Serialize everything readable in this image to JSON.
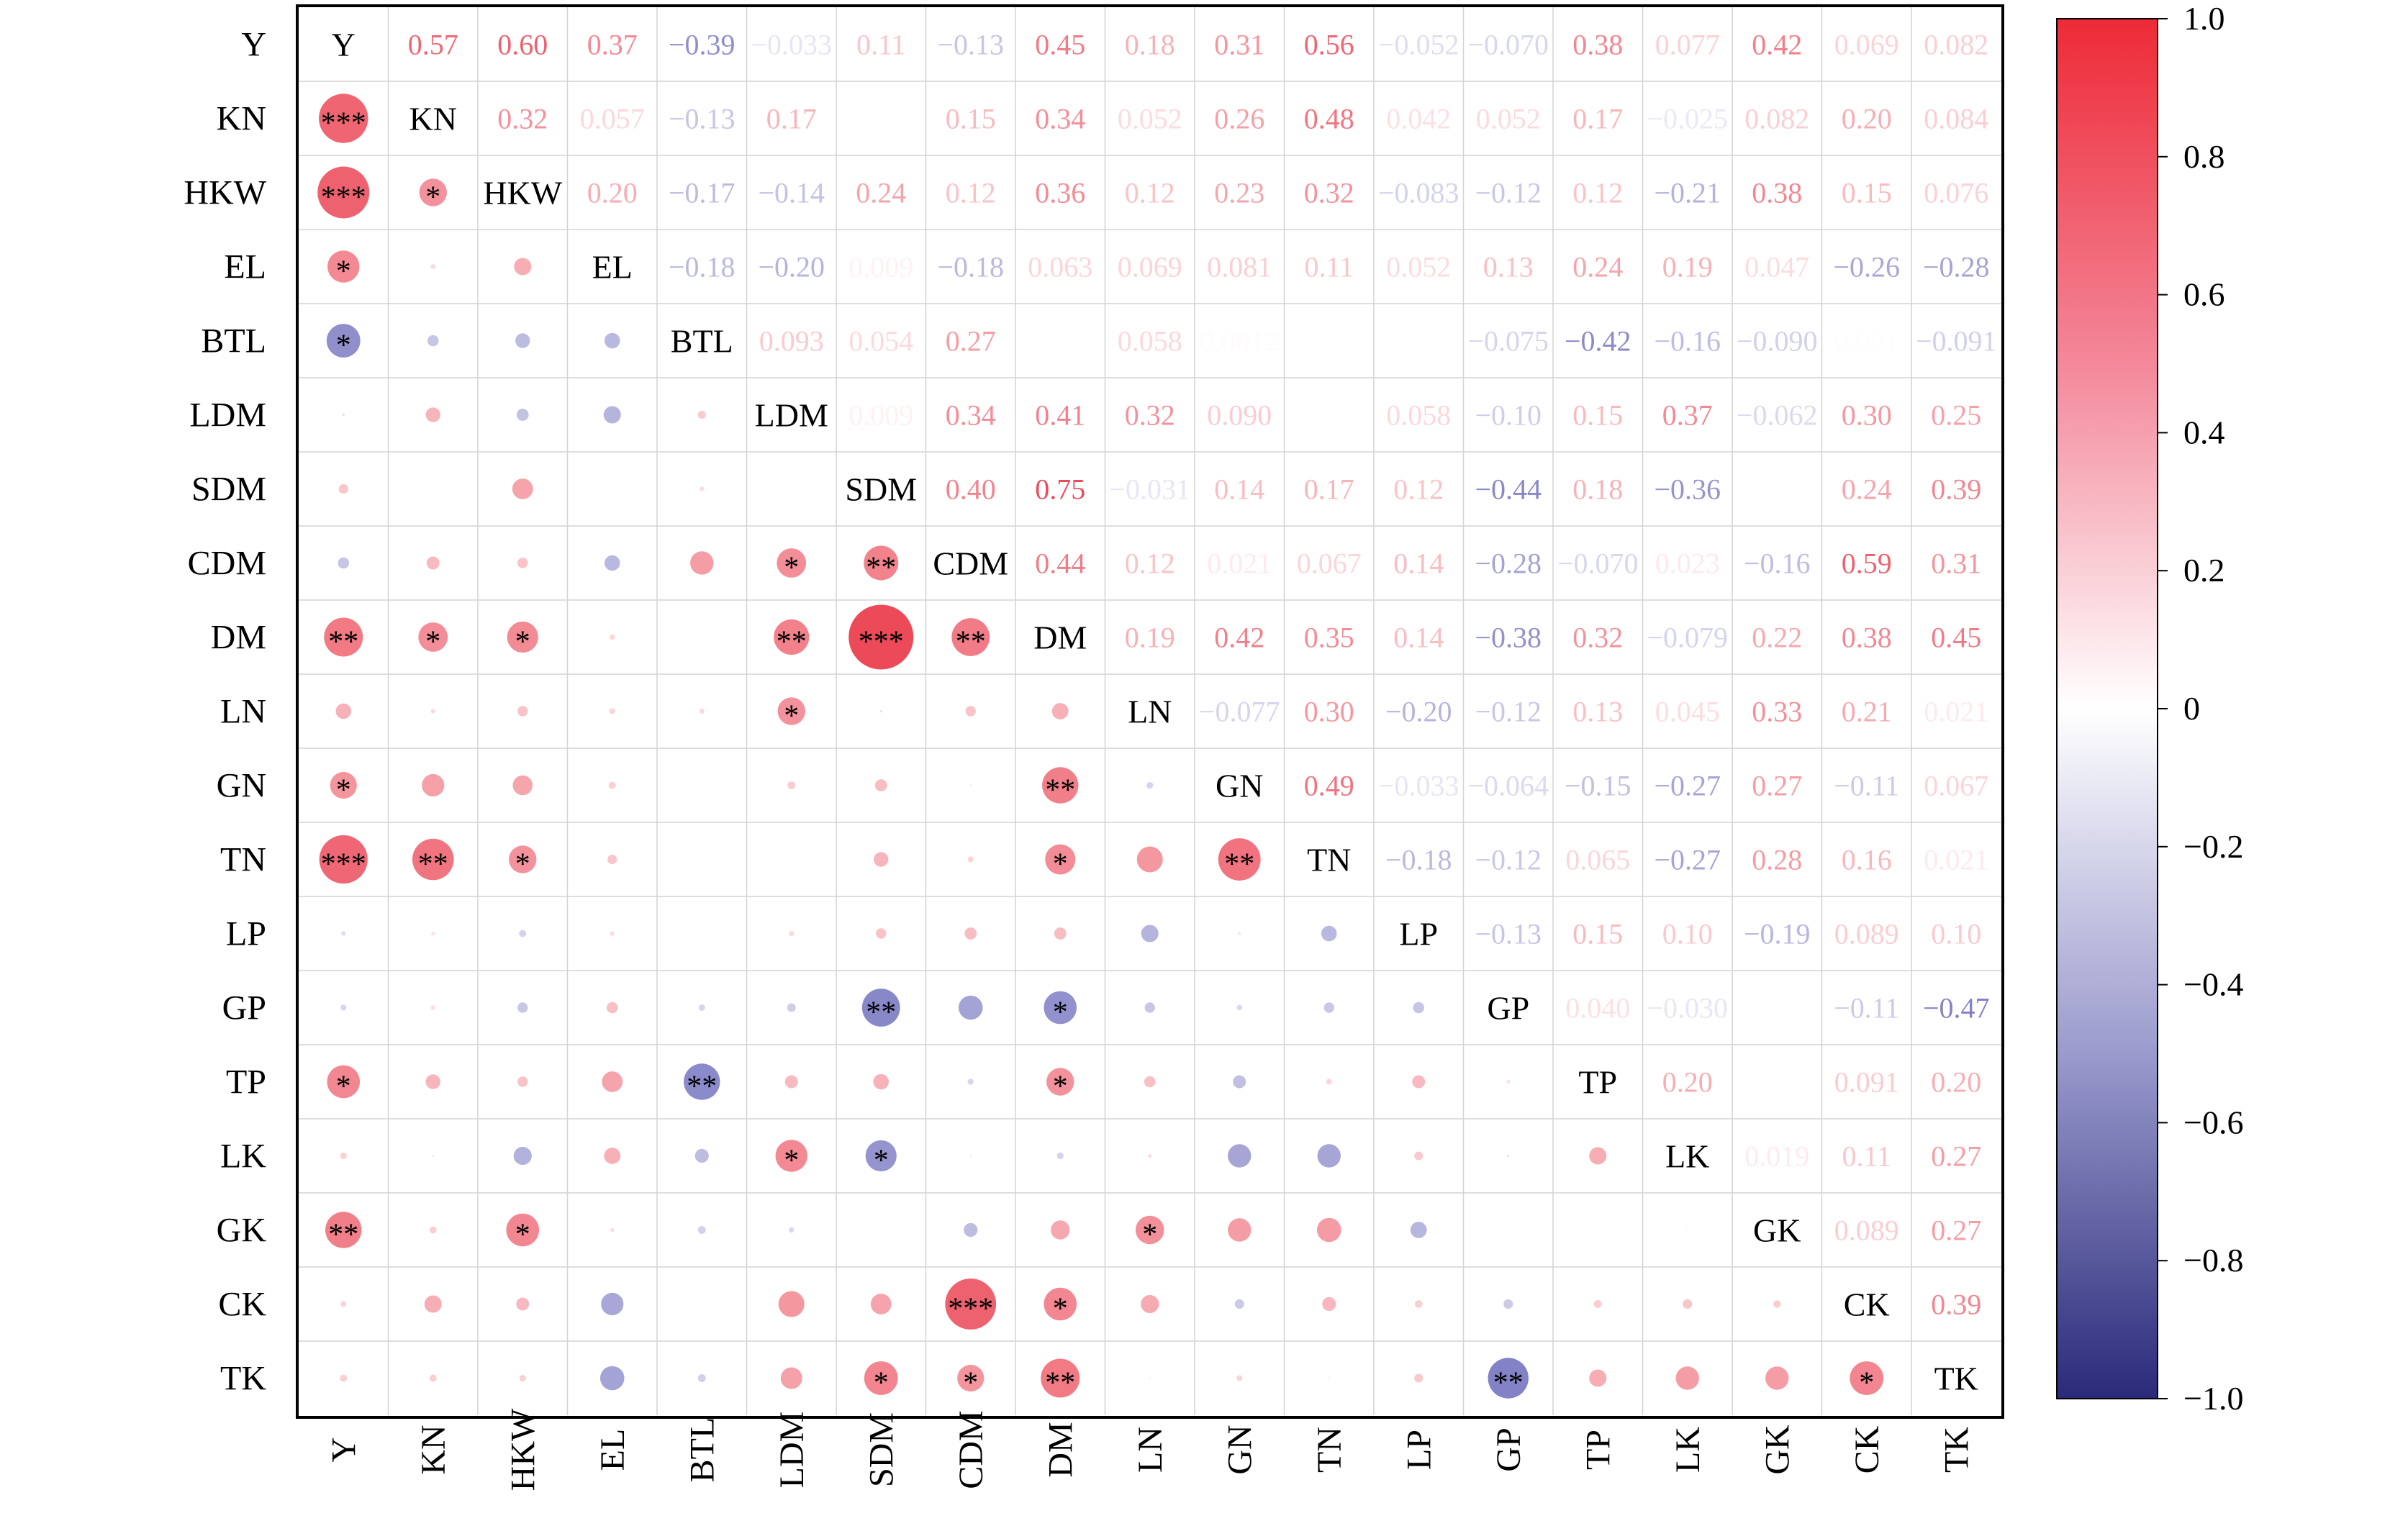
{
  "chart_data": {
    "type": "heatmap",
    "title": "",
    "variables": [
      "Y",
      "KN",
      "HKW",
      "EL",
      "BTL",
      "LDM",
      "SDM",
      "CDM",
      "DM",
      "LN",
      "GN",
      "TN",
      "LP",
      "GP",
      "TP",
      "LK",
      "GK",
      "CK",
      "TK"
    ],
    "upper_labels": [
      [
        "0.57",
        "0.60",
        "0.37",
        "−0.39",
        "−0.033",
        "0.11",
        "−0.13",
        "0.45",
        "0.18",
        "0.31",
        "0.56",
        "−0.052",
        "−0.070",
        "0.38",
        "0.077",
        "0.42",
        "0.069",
        "0.082"
      ],
      [
        "0.32",
        "0.057",
        "−0.13",
        "0.17",
        "",
        "0.15",
        "0.34",
        "0.052",
        "0.26",
        "0.48",
        "0.042",
        "0.052",
        "0.17",
        "−0.025",
        "0.082",
        "0.20",
        "0.084"
      ],
      [
        "0.20",
        "−0.17",
        "−0.14",
        "0.24",
        "0.12",
        "0.36",
        "0.12",
        "0.23",
        "0.32",
        "−0.083",
        "−0.12",
        "0.12",
        "−0.21",
        "0.38",
        "0.15",
        "0.076"
      ],
      [
        "−0.18",
        "−0.20",
        "0.009",
        "−0.18",
        "0.063",
        "0.069",
        "0.081",
        "0.11",
        "0.052",
        "0.13",
        "0.24",
        "0.19",
        "0.047",
        "−0.26",
        "−0.28"
      ],
      [
        "0.093",
        "0.054",
        "0.27",
        "",
        "0.058",
        "0.0012",
        "",
        "",
        "−0.075",
        "−0.42",
        "−0.16",
        "−0.090",
        "0.001",
        "−0.091"
      ],
      [
        "0.009",
        "0.34",
        "0.41",
        "0.32",
        "0.090",
        "",
        "0.058",
        "−0.10",
        "0.15",
        "0.37",
        "−0.062",
        "0.30",
        "0.25"
      ],
      [
        "0.40",
        "0.75",
        "−0.031",
        "0.14",
        "0.17",
        "0.12",
        "−0.44",
        "0.18",
        "−0.36",
        "",
        "0.24",
        "0.39"
      ],
      [
        "0.44",
        "0.12",
        "0.021",
        "0.067",
        "0.14",
        "−0.28",
        "−0.070",
        "0.023",
        "−0.16",
        "0.59",
        "0.31"
      ],
      [
        "0.19",
        "0.42",
        "0.35",
        "0.14",
        "−0.38",
        "0.32",
        "−0.079",
        "0.22",
        "0.38",
        "0.45"
      ],
      [
        "−0.077",
        "0.30",
        "−0.20",
        "−0.12",
        "0.13",
        "0.045",
        "0.33",
        "0.21",
        "0.021"
      ],
      [
        "0.49",
        "−0.033",
        "−0.064",
        "−0.15",
        "−0.27",
        "0.27",
        "−0.11",
        "0.067"
      ],
      [
        "−0.18",
        "−0.12",
        "0.065",
        "−0.27",
        "0.28",
        "0.16",
        "0.021"
      ],
      [
        "−0.13",
        "0.15",
        "0.10",
        "−0.19",
        "0.089",
        "0.10"
      ],
      [
        "0.040",
        "−0.030",
        "",
        "−0.11",
        "−0.47"
      ],
      [
        "0.20",
        "",
        "0.091",
        "0.20"
      ],
      [
        "0.019",
        "0.11",
        "0.27"
      ],
      [
        "0.089",
        "0.27"
      ],
      [
        "0.39"
      ]
    ],
    "lower_values": [
      [],
      [
        0.57
      ],
      [
        0.6,
        0.32
      ],
      [
        0.37,
        0.057,
        0.2
      ],
      [
        -0.39,
        -0.13,
        -0.17,
        -0.18
      ],
      [
        -0.033,
        0.17,
        -0.14,
        -0.2,
        0.093
      ],
      [
        0.11,
        0,
        0.24,
        0.009,
        0.054,
        0.009
      ],
      [
        -0.13,
        0.15,
        0.12,
        -0.18,
        0.27,
        0.34,
        0.4
      ],
      [
        0.45,
        0.34,
        0.36,
        0.063,
        0,
        0.41,
        0.75,
        0.44
      ],
      [
        0.18,
        0.052,
        0.12,
        0.069,
        0.058,
        0.32,
        -0.031,
        0.12,
        0.19
      ],
      [
        0.31,
        0.26,
        0.23,
        0.081,
        0.0012,
        0.09,
        0.14,
        0.021,
        0.42,
        -0.077
      ],
      [
        0.56,
        0.48,
        0.32,
        0.11,
        0,
        0,
        0.17,
        0.067,
        0.35,
        0.3,
        0.49
      ],
      [
        -0.052,
        0.042,
        -0.083,
        0.052,
        0,
        0.058,
        0.12,
        0.14,
        0.14,
        -0.2,
        -0.033,
        -0.18
      ],
      [
        -0.07,
        0.052,
        -0.12,
        0.13,
        -0.075,
        -0.1,
        -0.44,
        -0.28,
        -0.38,
        -0.12,
        -0.064,
        -0.12,
        -0.13
      ],
      [
        0.38,
        0.17,
        0.12,
        0.24,
        -0.42,
        0.15,
        0.18,
        -0.07,
        0.32,
        0.13,
        -0.15,
        0.065,
        0.15,
        0.04
      ],
      [
        0.077,
        -0.025,
        -0.21,
        0.19,
        -0.16,
        0.37,
        -0.36,
        0.023,
        -0.079,
        0.045,
        -0.27,
        -0.27,
        0.1,
        -0.03,
        0.2
      ],
      [
        0.42,
        0.082,
        0.38,
        0.047,
        -0.09,
        -0.062,
        0,
        -0.16,
        0.22,
        0.33,
        0.27,
        0.28,
        -0.19,
        0,
        0,
        0.019
      ],
      [
        0.069,
        0.2,
        0.15,
        -0.26,
        0.001,
        0.3,
        0.24,
        0.59,
        0.38,
        0.21,
        -0.11,
        0.16,
        0.089,
        -0.11,
        0.091,
        0.11,
        0.089
      ],
      [
        0.082,
        0.084,
        0.076,
        -0.28,
        -0.091,
        0.25,
        0.39,
        0.31,
        0.45,
        0.021,
        0.067,
        0.021,
        0.1,
        -0.47,
        0.2,
        0.27,
        0.27,
        0.39
      ]
    ],
    "lower_stars": [
      [],
      [
        "***"
      ],
      [
        "***",
        "*"
      ],
      [
        "*",
        "",
        ""
      ],
      [
        "*",
        "",
        "",
        ""
      ],
      [
        "",
        "",
        "",
        "",
        ""
      ],
      [
        "",
        "",
        "",
        "",
        "",
        ""
      ],
      [
        "",
        "",
        "",
        "",
        "",
        "*",
        "**"
      ],
      [
        "**",
        "*",
        "*",
        "",
        "",
        "**",
        "***",
        "**"
      ],
      [
        "",
        "",
        "",
        "",
        "",
        "*",
        "",
        "",
        ""
      ],
      [
        "*",
        "",
        "",
        "",
        "",
        "",
        "",
        "",
        "**",
        ""
      ],
      [
        "***",
        "**",
        "*",
        "",
        "",
        "",
        "",
        "",
        "*",
        "",
        "**"
      ],
      [
        "",
        "",
        "",
        "",
        "",
        "",
        "",
        "",
        "",
        "",
        "",
        ""
      ],
      [
        "",
        "",
        "",
        "",
        "",
        "",
        "**",
        "",
        "*",
        "",
        "",
        "",
        ""
      ],
      [
        "*",
        "",
        "",
        "",
        "**",
        "",
        "",
        "",
        "*",
        "",
        "",
        "",
        "",
        ""
      ],
      [
        "",
        "",
        "",
        "",
        "",
        "*",
        "*",
        "",
        "",
        "",
        "",
        "",
        "",
        "",
        ""
      ],
      [
        "**",
        "",
        "*",
        "",
        "",
        "",
        "",
        "",
        "",
        "*",
        "",
        "",
        "",
        "",
        "",
        ""
      ],
      [
        "",
        "",
        "",
        "",
        "",
        "",
        "",
        "***",
        "*",
        "",
        "",
        "",
        "",
        "",
        "",
        "",
        ""
      ],
      [
        "",
        "",
        "",
        "",
        "",
        "",
        "*",
        "*",
        "**",
        "",
        "",
        "",
        "",
        "**",
        "",
        "",
        "",
        "*"
      ]
    ],
    "colorbar": {
      "range": [
        -1.0,
        1.0
      ],
      "ticks": [
        "1.0",
        "0.8",
        "0.6",
        "0.4",
        "0.2",
        "0",
        "−0.2",
        "−0.4",
        "−0.6",
        "−0.8",
        "−1.0"
      ]
    },
    "colors": {
      "positive": "#e8283a",
      "negative": "#2e2c8a",
      "grid": "#d3d3d3",
      "frame": "#000000"
    }
  }
}
